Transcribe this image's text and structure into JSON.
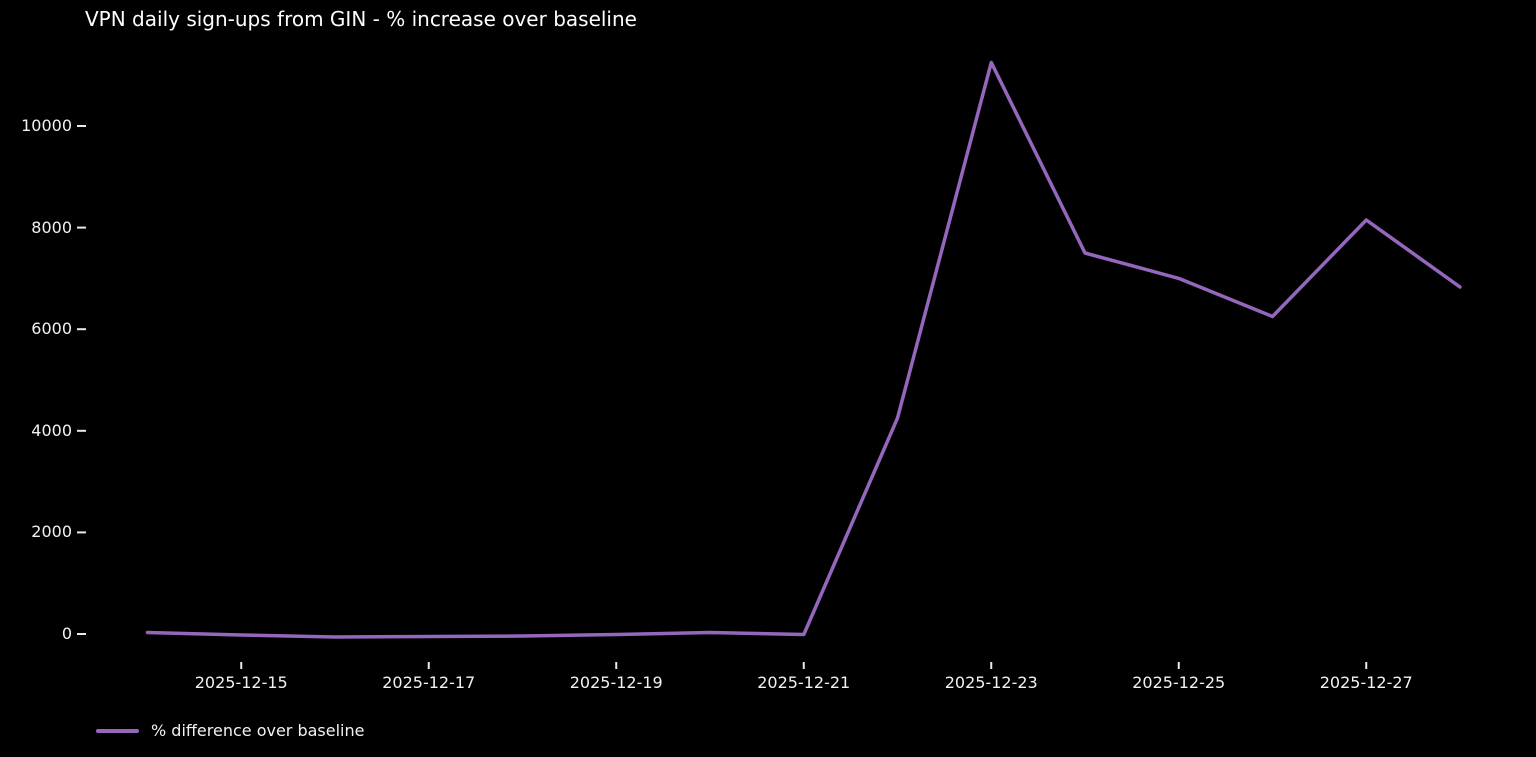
{
  "title": "VPN daily sign-ups from GIN - % increase over baseline",
  "legend": {
    "label": "% difference over baseline"
  },
  "colors": {
    "background": "#000000",
    "title_text": "#ffffff",
    "tick_text": "#f2f2f2",
    "tick_mark": "#eaeaea",
    "line": "#9467bd"
  },
  "chart_data": {
    "type": "line",
    "title": "VPN daily sign-ups from GIN - % increase over baseline",
    "xlabel": "",
    "ylabel": "",
    "grid": false,
    "legend_position": "lower-left",
    "x": [
      "2025-12-14",
      "2025-12-15",
      "2025-12-16",
      "2025-12-17",
      "2025-12-18",
      "2025-12-19",
      "2025-12-20",
      "2025-12-21",
      "2025-12-22",
      "2025-12-23",
      "2025-12-24",
      "2025-12-25",
      "2025-12-26",
      "2025-12-27",
      "2025-12-28"
    ],
    "series": [
      {
        "name": "% difference over baseline",
        "color": "#9467bd",
        "values": [
          30,
          -20,
          -60,
          -50,
          -40,
          -10,
          30,
          -10,
          4250,
          11250,
          7500,
          7000,
          6250,
          8150,
          6830
        ]
      }
    ],
    "y_ticks": [
      0,
      2000,
      4000,
      6000,
      8000,
      10000
    ],
    "x_tick_labels": [
      "2025-12-15",
      "2025-12-17",
      "2025-12-19",
      "2025-12-21",
      "2025-12-23",
      "2025-12-25",
      "2025-12-27"
    ],
    "ylim": [
      -530,
      11730
    ]
  }
}
